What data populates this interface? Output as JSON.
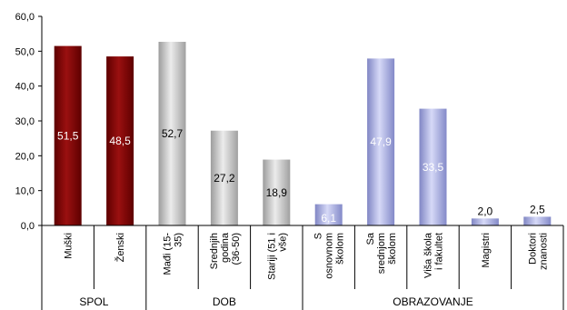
{
  "chart_data": {
    "type": "bar",
    "title": "",
    "xlabel": "",
    "ylabel": "",
    "ylim": [
      0,
      60
    ],
    "yticks": [
      "0,0",
      "10,0",
      "20,0",
      "30,0",
      "40,0",
      "50,0",
      "60,0"
    ],
    "grid": false,
    "legend": "none",
    "categories": [
      [
        "Muški"
      ],
      [
        "Ženski"
      ],
      [
        "Mađi (15-",
        "35)"
      ],
      [
        "Srednjih",
        "godina",
        "(36-50)"
      ],
      [
        "Stariji (51 i",
        "vše)"
      ],
      [
        "S",
        "osnovnom",
        "školom"
      ],
      [
        "Sa",
        "srednjom",
        "školom"
      ],
      [
        "Viša škola",
        "i fakultet"
      ],
      [
        "Magistri"
      ],
      [
        "Doktori",
        "znanosti"
      ]
    ],
    "values": [
      51.5,
      48.5,
      52.7,
      27.2,
      18.9,
      6.1,
      47.9,
      33.5,
      2.0,
      2.5
    ],
    "value_labels": [
      "51,5",
      "48,5",
      "52,7",
      "27,2",
      "18,9",
      "6,1",
      "47,9",
      "33,5",
      "2,0",
      "2,5"
    ],
    "groups": [
      {
        "name": "SPOL",
        "start": 0,
        "end": 1,
        "color": "#8b0a0a"
      },
      {
        "name": "DOB",
        "start": 2,
        "end": 4,
        "color": "#bdbdbd"
      },
      {
        "name": "OBRAZOVANJE",
        "start": 5,
        "end": 9,
        "color": "#a9aee6"
      }
    ]
  }
}
